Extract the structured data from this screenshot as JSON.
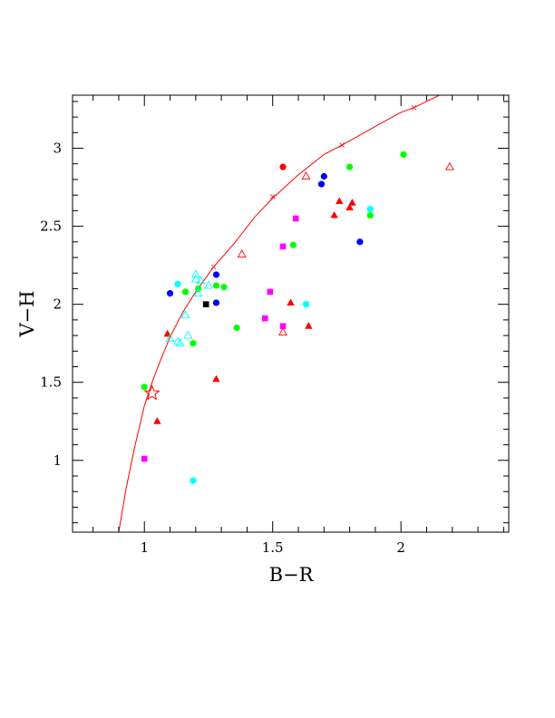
{
  "chart_data": {
    "type": "scatter",
    "xlabel": "B−R",
    "ylabel": "V−H",
    "xlim": [
      0.72,
      2.42
    ],
    "ylim": [
      0.54,
      3.34
    ],
    "x_ticks": [
      1,
      1.5,
      2
    ],
    "x_tick_labels": [
      "1",
      "1.5",
      "2"
    ],
    "y_ticks": [
      1,
      1.5,
      2,
      2.5,
      3
    ],
    "y_tick_labels": [
      "1",
      "1.5",
      "2",
      "2.5",
      "3"
    ],
    "x_minor_step": 0.1,
    "y_minor_step": 0.1,
    "grid": false,
    "colors": {
      "red": "#ff0000",
      "blue": "#0000ff",
      "green": "#00ff00",
      "cyan": "#00ffff",
      "magenta": "#ff00ff",
      "black": "#000000"
    },
    "curve": {
      "color": "#ff0000",
      "points": [
        [
          0.9,
          0.54
        ],
        [
          0.93,
          0.83
        ],
        [
          0.96,
          1.07
        ],
        [
          1.0,
          1.35
        ],
        [
          1.03,
          1.5
        ],
        [
          1.06,
          1.63
        ],
        [
          1.1,
          1.79
        ],
        [
          1.15,
          1.95
        ],
        [
          1.2,
          2.08
        ],
        [
          1.27,
          2.24
        ],
        [
          1.35,
          2.39
        ],
        [
          1.43,
          2.56
        ],
        [
          1.5,
          2.68
        ],
        [
          1.6,
          2.83
        ],
        [
          1.7,
          2.96
        ],
        [
          1.77,
          3.02
        ],
        [
          1.9,
          3.14
        ],
        [
          2.0,
          3.23
        ],
        [
          2.05,
          3.26
        ],
        [
          2.15,
          3.34
        ]
      ],
      "markers": [
        [
          1.27,
          2.24
        ],
        [
          1.5,
          2.69
        ],
        [
          1.77,
          3.02
        ],
        [
          2.05,
          3.26
        ]
      ]
    },
    "star": {
      "x": 1.03,
      "y": 1.43,
      "color": "#ff0000"
    },
    "points": [
      {
        "x": 1.54,
        "y": 2.88,
        "marker": "circle",
        "color": "red"
      },
      {
        "x": 1.8,
        "y": 2.88,
        "marker": "circle",
        "color": "green"
      },
      {
        "x": 2.01,
        "y": 2.96,
        "marker": "circle",
        "color": "green"
      },
      {
        "x": 1.88,
        "y": 2.57,
        "marker": "circle",
        "color": "green"
      },
      {
        "x": 1.58,
        "y": 2.38,
        "marker": "circle",
        "color": "green"
      },
      {
        "x": 1.16,
        "y": 2.08,
        "marker": "circle",
        "color": "green"
      },
      {
        "x": 1.21,
        "y": 2.1,
        "marker": "circle",
        "color": "green"
      },
      {
        "x": 1.28,
        "y": 2.12,
        "marker": "circle",
        "color": "green"
      },
      {
        "x": 1.31,
        "y": 2.11,
        "marker": "circle",
        "color": "green"
      },
      {
        "x": 1.36,
        "y": 1.85,
        "marker": "circle",
        "color": "green"
      },
      {
        "x": 1.19,
        "y": 1.75,
        "marker": "circle",
        "color": "green"
      },
      {
        "x": 1.0,
        "y": 1.47,
        "marker": "circle",
        "color": "green"
      },
      {
        "x": 1.7,
        "y": 2.82,
        "marker": "circle",
        "color": "blue"
      },
      {
        "x": 1.69,
        "y": 2.77,
        "marker": "circle",
        "color": "blue"
      },
      {
        "x": 1.84,
        "y": 2.4,
        "marker": "circle",
        "color": "blue"
      },
      {
        "x": 1.28,
        "y": 2.19,
        "marker": "circle",
        "color": "blue"
      },
      {
        "x": 1.1,
        "y": 2.07,
        "marker": "circle",
        "color": "blue"
      },
      {
        "x": 1.28,
        "y": 2.01,
        "marker": "circle",
        "color": "blue"
      },
      {
        "x": 1.88,
        "y": 2.61,
        "marker": "circle",
        "color": "cyan"
      },
      {
        "x": 1.63,
        "y": 2.0,
        "marker": "circle",
        "color": "cyan"
      },
      {
        "x": 1.13,
        "y": 2.13,
        "marker": "circle",
        "color": "cyan"
      },
      {
        "x": 1.19,
        "y": 0.87,
        "marker": "circle",
        "color": "cyan"
      },
      {
        "x": 1.59,
        "y": 2.55,
        "marker": "square",
        "color": "magenta"
      },
      {
        "x": 1.54,
        "y": 2.37,
        "marker": "square",
        "color": "magenta"
      },
      {
        "x": 1.49,
        "y": 2.08,
        "marker": "square",
        "color": "magenta"
      },
      {
        "x": 1.47,
        "y": 1.91,
        "marker": "square",
        "color": "magenta"
      },
      {
        "x": 1.54,
        "y": 1.86,
        "marker": "square",
        "color": "magenta"
      },
      {
        "x": 1.0,
        "y": 1.01,
        "marker": "square",
        "color": "magenta"
      },
      {
        "x": 1.24,
        "y": 2.0,
        "marker": "square",
        "color": "black"
      },
      {
        "x": 1.76,
        "y": 2.66,
        "marker": "triangle",
        "color": "red"
      },
      {
        "x": 1.81,
        "y": 2.65,
        "marker": "triangle",
        "color": "red"
      },
      {
        "x": 1.8,
        "y": 2.62,
        "marker": "triangle",
        "color": "red"
      },
      {
        "x": 1.74,
        "y": 2.57,
        "marker": "triangle",
        "color": "red"
      },
      {
        "x": 1.57,
        "y": 2.01,
        "marker": "triangle",
        "color": "red"
      },
      {
        "x": 1.64,
        "y": 1.86,
        "marker": "triangle",
        "color": "red"
      },
      {
        "x": 1.09,
        "y": 1.81,
        "marker": "triangle",
        "color": "red"
      },
      {
        "x": 1.28,
        "y": 1.52,
        "marker": "triangle",
        "color": "red"
      },
      {
        "x": 1.05,
        "y": 1.25,
        "marker": "triangle",
        "color": "red"
      },
      {
        "x": 1.63,
        "y": 2.82,
        "marker": "triangle-open",
        "color": "red"
      },
      {
        "x": 2.19,
        "y": 2.88,
        "marker": "triangle-open",
        "color": "red"
      },
      {
        "x": 1.38,
        "y": 2.32,
        "marker": "triangle-open",
        "color": "red"
      },
      {
        "x": 1.54,
        "y": 1.82,
        "marker": "triangle-open",
        "color": "red"
      },
      {
        "x": 1.2,
        "y": 2.19,
        "marker": "triangle-open",
        "color": "cyan"
      },
      {
        "x": 1.2,
        "y": 2.16,
        "marker": "triangle-open",
        "color": "cyan"
      },
      {
        "x": 1.22,
        "y": 2.15,
        "marker": "triangle-open",
        "color": "cyan"
      },
      {
        "x": 1.25,
        "y": 2.12,
        "marker": "triangle-open",
        "color": "cyan"
      },
      {
        "x": 1.21,
        "y": 2.07,
        "marker": "triangle-open",
        "color": "cyan"
      },
      {
        "x": 1.16,
        "y": 1.93,
        "marker": "triangle-open",
        "color": "cyan"
      },
      {
        "x": 1.17,
        "y": 1.8,
        "marker": "triangle-open",
        "color": "cyan"
      },
      {
        "x": 1.13,
        "y": 1.76,
        "marker": "triangle-open",
        "color": "cyan"
      },
      {
        "x": 1.14,
        "y": 1.75,
        "marker": "triangle-open",
        "color": "cyan"
      },
      {
        "x": 1.1,
        "y": 1.78,
        "marker": "triangle-open",
        "color": "cyan"
      }
    ]
  }
}
